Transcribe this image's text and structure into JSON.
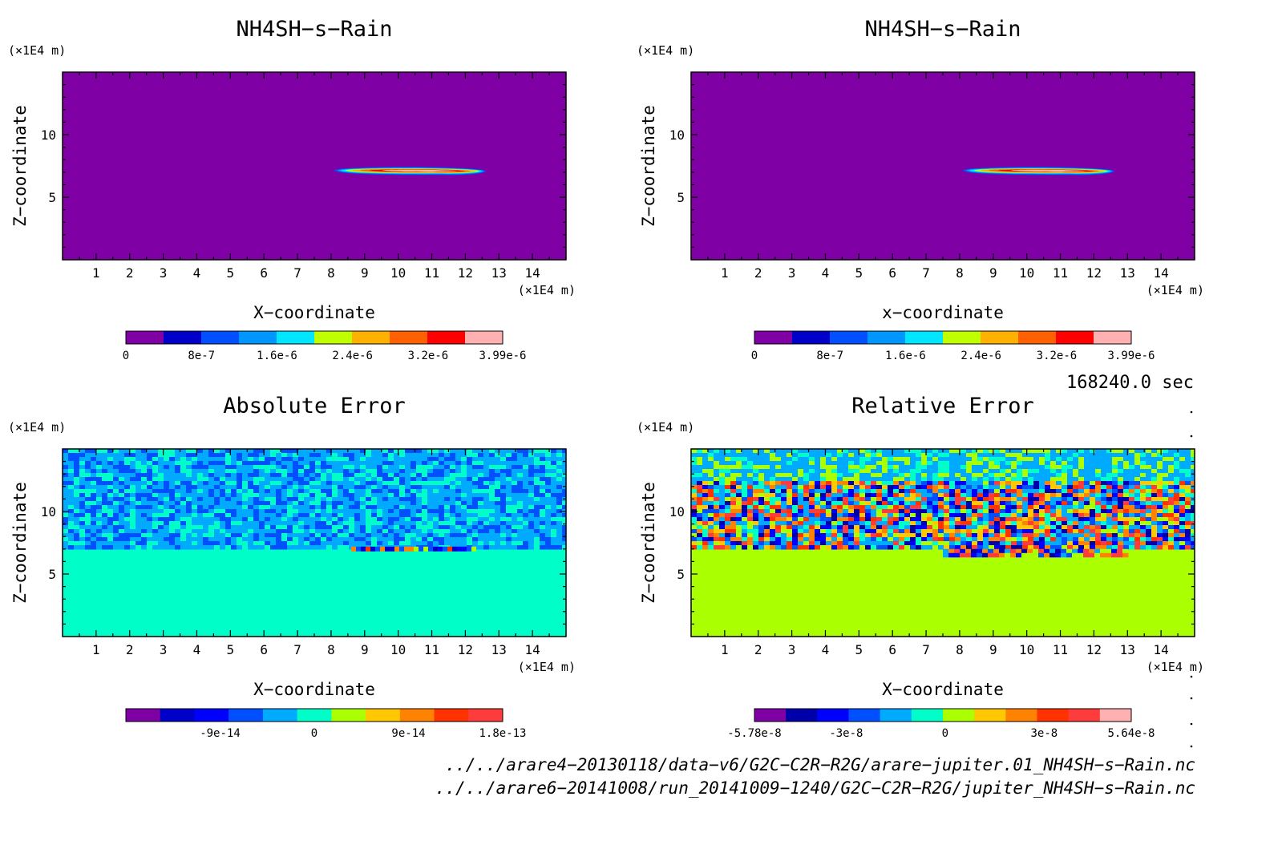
{
  "chart_data": [
    {
      "type": "heatmap",
      "title": "NH4SH−s−Rain",
      "xlabel": "X−coordinate",
      "ylabel": "Z−coordinate",
      "x_unit": "(×1E4 m)",
      "z_unit": "(×1E4 m)",
      "xlim": [
        0,
        15
      ],
      "ylim": [
        0,
        15
      ],
      "x_ticks": [
        1,
        2,
        3,
        4,
        5,
        6,
        7,
        8,
        9,
        10,
        11,
        12,
        13,
        14
      ],
      "y_ticks": [
        5,
        10
      ],
      "background_value": 0,
      "feature": {
        "x_range": [
          8.1,
          12.8
        ],
        "z_center": 7.1,
        "max_value": 3.99e-06
      },
      "colorbar": {
        "min": 0,
        "max": 3.99e-06,
        "labels": [
          "0",
          "8e-7",
          "1.6e-6",
          "2.4e-6",
          "3.2e-6",
          "3.99e-6"
        ],
        "colors": [
          "#7f00a4",
          "#0000c8",
          "#0050ff",
          "#0096ff",
          "#00e6ff",
          "#bfff00",
          "#ffb000",
          "#ff6000",
          "#ff0000",
          "#ffb0b0"
        ]
      }
    },
    {
      "type": "heatmap",
      "title": "NH4SH−s−Rain",
      "xlabel": "x−coordinate",
      "ylabel": "Z−coordinate",
      "x_unit": "(×1E4 m)",
      "z_unit": "(×1E4 m)",
      "xlim": [
        0,
        15
      ],
      "ylim": [
        0,
        15
      ],
      "x_ticks": [
        1,
        2,
        3,
        4,
        5,
        6,
        7,
        8,
        9,
        10,
        11,
        12,
        13,
        14
      ],
      "y_ticks": [
        5,
        10
      ],
      "background_value": 0,
      "feature": {
        "x_range": [
          8.1,
          12.8
        ],
        "z_center": 7.1,
        "max_value": 3.99e-06
      },
      "colorbar": {
        "min": 0,
        "max": 3.99e-06,
        "labels": [
          "0",
          "8e-7",
          "1.6e-6",
          "2.4e-6",
          "3.2e-6",
          "3.99e-6"
        ],
        "colors": [
          "#7f00a4",
          "#0000c8",
          "#0050ff",
          "#0096ff",
          "#00e6ff",
          "#bfff00",
          "#ffb000",
          "#ff6000",
          "#ff0000",
          "#ffb0b0"
        ]
      }
    },
    {
      "type": "heatmap",
      "title": "Absolute Error",
      "xlabel": "X−coordinate",
      "ylabel": "Z−coordinate",
      "x_unit": "(×1E4 m)",
      "z_unit": "(×1E4 m)",
      "xlim": [
        0,
        15
      ],
      "ylim": [
        0,
        15
      ],
      "x_ticks": [
        1,
        2,
        3,
        4,
        5,
        6,
        7,
        8,
        9,
        10,
        11,
        12,
        13,
        14
      ],
      "y_ticks": [
        5,
        10
      ],
      "background_value": 0,
      "noise_region_z_min": 7,
      "colorbar": {
        "min": -1.8e-13,
        "max": 1.8e-13,
        "labels": [
          "-9e-14",
          "0",
          "9e-14",
          "1.8e-13"
        ],
        "colors": [
          "#7f00a4",
          "#0000c8",
          "#0000ff",
          "#0050ff",
          "#00aaff",
          "#00ffc8",
          "#aaff00",
          "#ffc800",
          "#ff8200",
          "#ff3200",
          "#ff3c3c"
        ]
      }
    },
    {
      "type": "heatmap",
      "title": "Relative Error",
      "xlabel": "X−coordinate",
      "ylabel": "Z−coordinate",
      "x_unit": "(×1E4 m)",
      "z_unit": "(×1E4 m)",
      "xlim": [
        0,
        15
      ],
      "ylim": [
        0,
        15
      ],
      "x_ticks": [
        1,
        2,
        3,
        4,
        5,
        6,
        7,
        8,
        9,
        10,
        11,
        12,
        13,
        14
      ],
      "y_ticks": [
        5,
        10
      ],
      "background_value": 0,
      "noise_region_z_min": 7,
      "colorbar": {
        "min": -5.78e-08,
        "max": 5.64e-08,
        "labels": [
          "-5.78e-8",
          "-3e-8",
          "0",
          "3e-8",
          "5.64e-8"
        ],
        "colors": [
          "#7f00a4",
          "#0000aa",
          "#0000ff",
          "#0050ff",
          "#00aaff",
          "#00ffc8",
          "#aaff00",
          "#ffc800",
          "#ff8200",
          "#ff3200",
          "#ff3c3c",
          "#ffb0b0"
        ]
      }
    }
  ],
  "time_label": "168240.0 sec",
  "file_paths": [
    "../../arare4−20130118/data−v6/G2C−C2R−R2G/arare−jupiter.01_NH4SH−s−Rain.nc",
    "../../arare6−20141008/run_20141009−1240/G2C−C2R−R2G/jupiter_NH4SH−s−Rain.nc"
  ]
}
